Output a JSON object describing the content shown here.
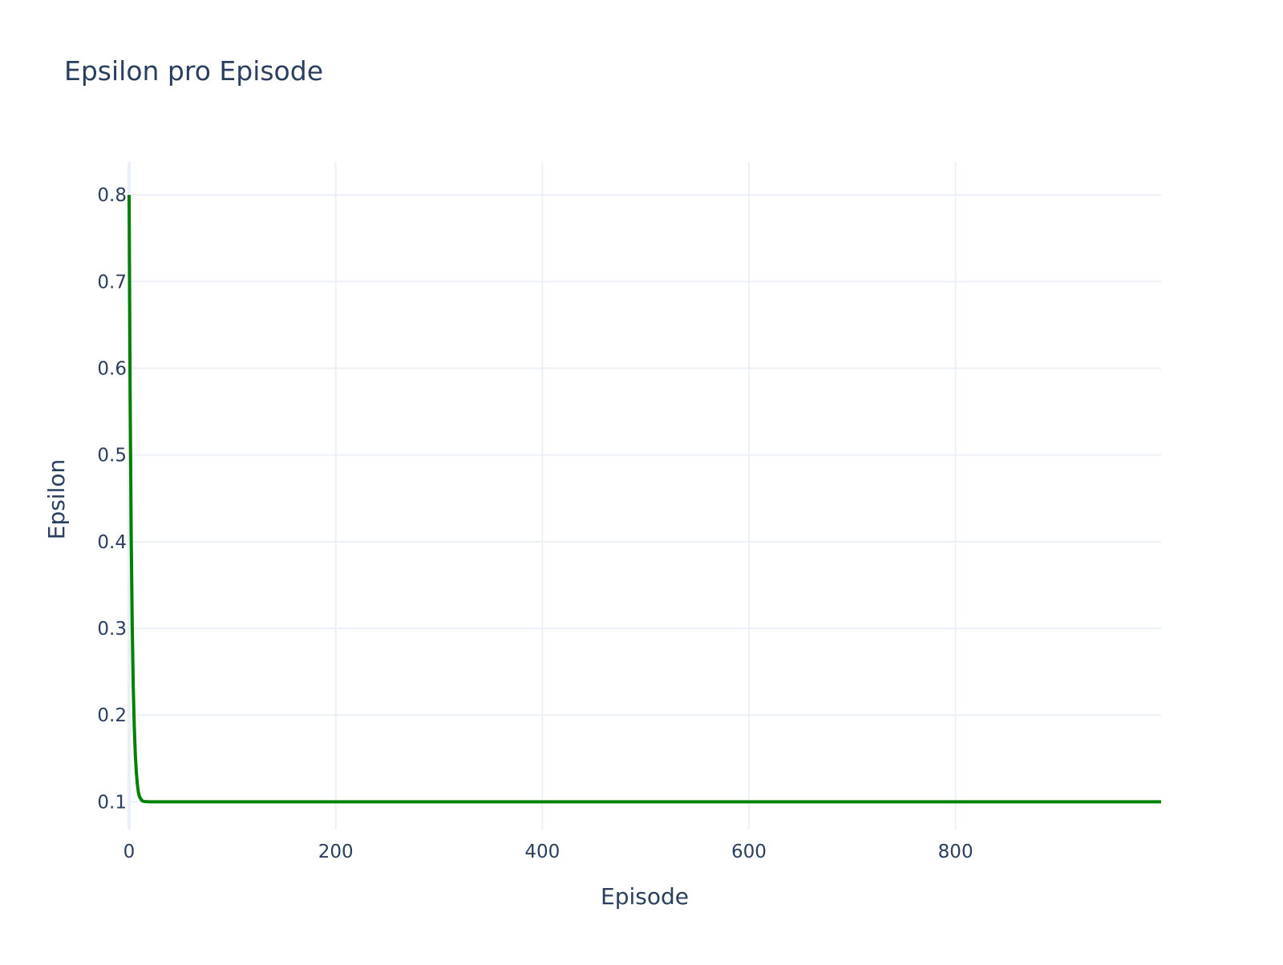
{
  "chart_data": {
    "type": "line",
    "title": "Epsilon pro Episode",
    "xlabel": "Episode",
    "ylabel": "Epsilon",
    "xlim": [
      0,
      999
    ],
    "ylim": [
      0.068,
      0.838
    ],
    "xticks": [
      0,
      200,
      400,
      600,
      800
    ],
    "xtick_labels": [
      "0",
      "200",
      "400",
      "600",
      "800"
    ],
    "yticks": [
      0.1,
      0.2,
      0.3,
      0.4,
      0.5,
      0.6,
      0.7,
      0.8
    ],
    "ytick_labels": [
      "0.1",
      "0.2",
      "0.3",
      "0.4",
      "0.5",
      "0.6",
      "0.7",
      "0.8"
    ],
    "grid": true,
    "legend": "none",
    "series": [
      {
        "color": "#008000",
        "x": [
          0,
          1,
          2,
          3,
          4,
          5,
          6,
          7,
          8,
          9,
          10,
          11,
          12,
          13,
          14,
          15,
          16,
          18,
          20,
          25,
          30,
          50,
          100,
          200,
          400,
          600,
          800,
          999
        ],
        "y": [
          0.8,
          0.57,
          0.41,
          0.305,
          0.234,
          0.187,
          0.155,
          0.134,
          0.12,
          0.111,
          0.106,
          0.104,
          0.102,
          0.101,
          0.1005,
          0.1003,
          0.1002,
          0.1001,
          0.1,
          0.1,
          0.1,
          0.1,
          0.1,
          0.1,
          0.1,
          0.1,
          0.1,
          0.1
        ]
      }
    ]
  }
}
